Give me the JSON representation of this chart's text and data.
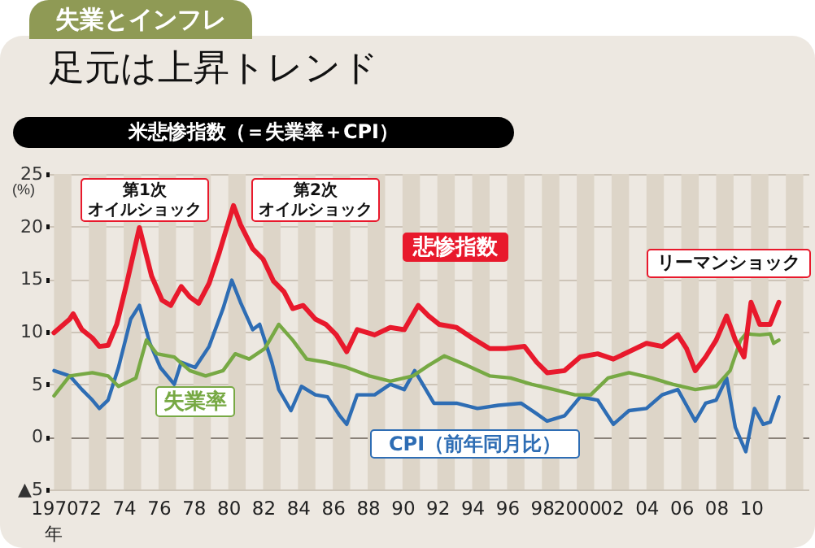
{
  "chart_data": {
    "type": "line",
    "title": "足元は上昇トレンド",
    "subtitle": "米悲惨指数（＝失業率＋CPI）",
    "ylabel": "(%)",
    "annotations": [
      "失業とインフレ",
      "第1次オイルショック",
      "第2次オイルショック",
      "リーマンショック",
      "年"
    ],
    "xlim": [
      1969.7,
      2013.3
    ],
    "xticks": [
      1970,
      {
        "value": 1972,
        "label": "72"
      },
      {
        "value": 1974,
        "label": "74"
      },
      {
        "value": 1976,
        "label": "76"
      },
      {
        "value": 1978,
        "label": "78"
      },
      {
        "value": 1980,
        "label": "80"
      },
      {
        "value": 1982,
        "label": "82"
      },
      {
        "value": 1984,
        "label": "84"
      },
      {
        "value": 1986,
        "label": "86"
      },
      {
        "value": 1988,
        "label": "88"
      },
      {
        "value": 1990,
        "label": "90"
      },
      {
        "value": 1992,
        "label": "92"
      },
      {
        "value": 1994,
        "label": "94"
      },
      {
        "value": 1996,
        "label": "96"
      },
      {
        "value": 1998,
        "label": "98"
      },
      2000,
      {
        "value": 2002,
        "label": "02"
      },
      {
        "value": 2004,
        "label": "04"
      },
      {
        "value": 2006,
        "label": "06"
      },
      {
        "value": 2008,
        "label": "08"
      },
      {
        "value": 2010,
        "label": "10"
      }
    ],
    "ylim": [
      -5,
      25
    ],
    "yticks": [
      {
        "value": -5,
        "label": "▲5"
      },
      0,
      5,
      10,
      15,
      20,
      25
    ],
    "grid": "y",
    "bands": [
      {
        "axis": "x",
        "from": 1970,
        "to": 1971,
        "color": "#ddd5c8"
      },
      {
        "axis": "x",
        "from": 1972,
        "to": 1973,
        "color": "#ddd5c8"
      },
      {
        "axis": "x",
        "from": 1974,
        "to": 1975,
        "color": "#ddd5c8"
      },
      {
        "axis": "x",
        "from": 1976,
        "to": 1977,
        "color": "#ddd5c8"
      },
      {
        "axis": "x",
        "from": 1978,
        "to": 1979,
        "color": "#ddd5c8"
      },
      {
        "axis": "x",
        "from": 1980,
        "to": 1981,
        "color": "#ddd5c8"
      },
      {
        "axis": "x",
        "from": 1982,
        "to": 1983,
        "color": "#ddd5c8"
      },
      {
        "axis": "x",
        "from": 1984,
        "to": 1985,
        "color": "#ddd5c8"
      },
      {
        "axis": "x",
        "from": 1986,
        "to": 1987,
        "color": "#ddd5c8"
      },
      {
        "axis": "x",
        "from": 1988,
        "to": 1989,
        "color": "#ddd5c8"
      },
      {
        "axis": "x",
        "from": 1990,
        "to": 1991,
        "color": "#ddd5c8"
      },
      {
        "axis": "x",
        "from": 1992,
        "to": 1993,
        "color": "#ddd5c8"
      },
      {
        "axis": "x",
        "from": 1994,
        "to": 1995,
        "color": "#ddd5c8"
      },
      {
        "axis": "x",
        "from": 1996,
        "to": 1997,
        "color": "#ddd5c8"
      },
      {
        "axis": "x",
        "from": 1998,
        "to": 1999,
        "color": "#ddd5c8"
      },
      {
        "axis": "x",
        "from": 2000,
        "to": 2001,
        "color": "#ddd5c8"
      },
      {
        "axis": "x",
        "from": 2002,
        "to": 2003,
        "color": "#ddd5c8"
      },
      {
        "axis": "x",
        "from": 2004,
        "to": 2005,
        "color": "#ddd5c8"
      },
      {
        "axis": "x",
        "from": 2006,
        "to": 2007,
        "color": "#ddd5c8"
      },
      {
        "axis": "x",
        "from": 2008,
        "to": 2009,
        "color": "#ddd5c8"
      },
      {
        "axis": "x",
        "from": 2010,
        "to": 2011,
        "color": "#ddd5c8"
      },
      {
        "axis": "x",
        "from": 2012,
        "to": 2013,
        "color": "#ddd5c8"
      }
    ],
    "series": [
      {
        "name": "悲惨指数",
        "color": "#e8192c",
        "x": [
          1970.0,
          1970.9,
          1971.1,
          1971.6,
          1972.2,
          1972.6,
          1973.1,
          1973.6,
          1974.2,
          1974.9,
          1975.6,
          1976.2,
          1976.7,
          1977.3,
          1977.8,
          1978.3,
          1978.9,
          1979.5,
          1980.3,
          1980.7,
          1981.4,
          1982.0,
          1982.6,
          1983.2,
          1983.7,
          1984.3,
          1985.0,
          1985.6,
          1986.2,
          1986.8,
          1987.4,
          1988.4,
          1989.3,
          1990.1,
          1990.9,
          1991.5,
          1992.1,
          1993.1,
          1994.0,
          1995.0,
          1995.9,
          1997.0,
          1997.7,
          1998.3,
          1999.3,
          2000.2,
          2001.2,
          2002.1,
          2003.0,
          2004.0,
          2004.9,
          2005.8,
          2006.3,
          2006.8,
          2007.4,
          2008.0,
          2008.6,
          2009.1,
          2009.6,
          2010.0,
          2010.5,
          2011.1,
          2011.6
        ],
        "values": [
          9.9,
          11.2,
          11.7,
          10.2,
          9.4,
          8.6,
          8.7,
          10.7,
          14.8,
          19.9,
          15.3,
          13.0,
          12.5,
          14.3,
          13.3,
          12.7,
          14.6,
          17.6,
          22.0,
          20.2,
          17.9,
          16.9,
          14.8,
          13.8,
          12.2,
          12.5,
          11.2,
          10.7,
          9.7,
          8.1,
          10.2,
          9.7,
          10.4,
          10.2,
          12.5,
          11.5,
          10.7,
          10.4,
          9.4,
          8.4,
          8.4,
          8.6,
          7.1,
          6.1,
          6.3,
          7.6,
          7.9,
          7.4,
          8.1,
          8.9,
          8.6,
          9.7,
          8.4,
          6.3,
          7.6,
          9.2,
          11.5,
          9.2,
          7.6,
          12.8,
          10.7,
          10.7,
          12.8
        ]
      },
      {
        "name": "失業率",
        "color": "#77a944",
        "x": [
          1970.0,
          1970.9,
          1972.2,
          1973.1,
          1973.7,
          1974.7,
          1975.3,
          1975.9,
          1976.9,
          1977.8,
          1978.7,
          1979.7,
          1980.4,
          1981.2,
          1982.1,
          1982.9,
          1983.7,
          1984.5,
          1985.6,
          1986.8,
          1988.1,
          1989.3,
          1990.6,
          1991.5,
          1992.4,
          1993.7,
          1995.0,
          1996.2,
          1997.4,
          1998.7,
          1999.9,
          2000.8,
          2001.8,
          2003.0,
          2004.3,
          2005.5,
          2006.8,
          2008.0,
          2008.8,
          2009.4,
          2009.7,
          2010.5,
          2011.1,
          2011.3,
          2011.6
        ],
        "values": [
          3.9,
          5.8,
          6.1,
          5.8,
          4.8,
          5.6,
          9.2,
          7.9,
          7.6,
          6.3,
          5.8,
          6.3,
          7.9,
          7.4,
          8.4,
          10.7,
          9.2,
          7.4,
          7.1,
          6.6,
          5.8,
          5.3,
          5.8,
          6.8,
          7.7,
          6.8,
          5.8,
          5.6,
          5.0,
          4.5,
          4.0,
          4.0,
          5.6,
          6.1,
          5.6,
          5.0,
          4.5,
          4.8,
          6.3,
          9.2,
          9.8,
          9.7,
          9.8,
          8.9,
          9.2
        ]
      },
      {
        "name": "CPI（前年同月比）",
        "color": "#2e6db4",
        "x": [
          1970.0,
          1970.9,
          1971.6,
          1972.2,
          1972.6,
          1973.1,
          1973.7,
          1974.4,
          1974.9,
          1975.5,
          1976.1,
          1976.9,
          1977.3,
          1978.1,
          1978.9,
          1979.7,
          1980.2,
          1980.7,
          1981.4,
          1981.8,
          1982.5,
          1982.9,
          1983.6,
          1984.2,
          1985.0,
          1985.7,
          1986.4,
          1986.8,
          1987.4,
          1988.4,
          1989.3,
          1990.1,
          1990.7,
          1991.8,
          1993.1,
          1994.3,
          1995.5,
          1996.8,
          1997.7,
          1998.3,
          1999.3,
          2000.2,
          2001.2,
          2002.1,
          2003.0,
          2004.0,
          2004.9,
          2005.8,
          2006.3,
          2006.8,
          2007.4,
          2008.0,
          2008.6,
          2009.1,
          2009.7,
          2010.2,
          2010.7,
          2011.1,
          2011.6
        ],
        "values": [
          6.3,
          5.8,
          4.5,
          3.5,
          2.7,
          3.5,
          6.6,
          11.2,
          12.5,
          8.9,
          6.6,
          5.0,
          7.1,
          6.6,
          8.6,
          12.2,
          14.9,
          12.8,
          10.2,
          10.7,
          7.1,
          4.5,
          2.5,
          4.8,
          4.0,
          3.8,
          2.0,
          1.2,
          4.0,
          4.0,
          5.0,
          4.5,
          6.3,
          3.2,
          3.2,
          2.7,
          3.0,
          3.2,
          2.2,
          1.5,
          2.0,
          3.8,
          3.5,
          1.2,
          2.5,
          2.7,
          4.0,
          4.5,
          3.0,
          1.5,
          3.2,
          3.5,
          5.6,
          0.9,
          -1.4,
          2.7,
          1.2,
          1.4,
          3.8
        ]
      }
    ]
  }
}
